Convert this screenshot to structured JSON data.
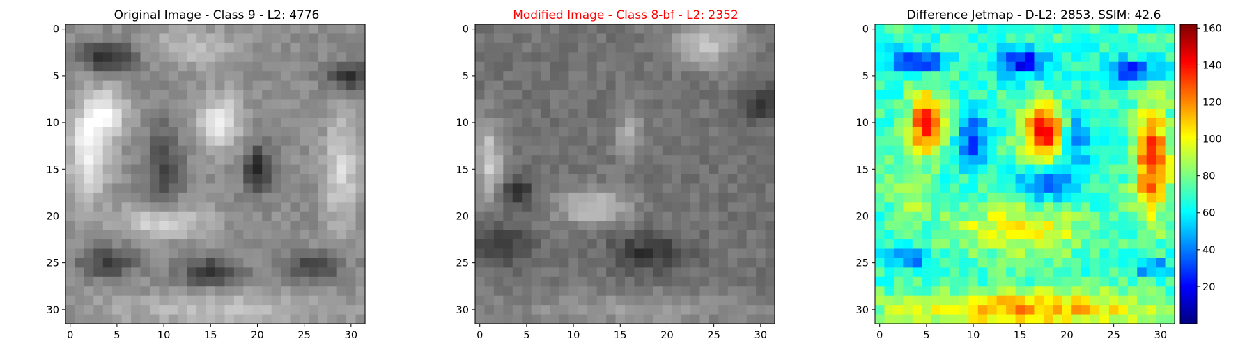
{
  "chart_data": [
    {
      "type": "heatmap",
      "title": "Original Image - Class 9 - L2: 4776",
      "title_color": "#000000",
      "colormap": "gray",
      "grid_size": [
        32,
        32
      ],
      "x_ticks": [
        "0",
        "5",
        "10",
        "15",
        "20",
        "25",
        "30"
      ],
      "y_ticks": [
        "0",
        "5",
        "10",
        "15",
        "20",
        "25",
        "30"
      ],
      "grid": false
    },
    {
      "type": "heatmap",
      "title": "Modified Image - Class 8-bf - L2: 2352",
      "title_color": "#ff0000",
      "colormap": "gray",
      "grid_size": [
        32,
        32
      ],
      "x_ticks": [
        "0",
        "5",
        "10",
        "15",
        "20",
        "25",
        "30"
      ],
      "y_ticks": [
        "0",
        "5",
        "10",
        "15",
        "20",
        "25",
        "30"
      ],
      "grid": false
    },
    {
      "type": "heatmap",
      "title": "Difference Jetmap - D-L2: 2853, SSIM: 42.6",
      "title_color": "#000000",
      "colormap": "jet",
      "grid_size": [
        32,
        32
      ],
      "x_ticks": [
        "0",
        "5",
        "10",
        "15",
        "20",
        "25",
        "30"
      ],
      "y_ticks": [
        "0",
        "5",
        "10",
        "15",
        "20",
        "25",
        "30"
      ],
      "colorbar": {
        "min": 0,
        "max": 162,
        "ticks": [
          "20",
          "40",
          "60",
          "80",
          "100",
          "120",
          "140",
          "160"
        ]
      },
      "grid": false
    }
  ]
}
